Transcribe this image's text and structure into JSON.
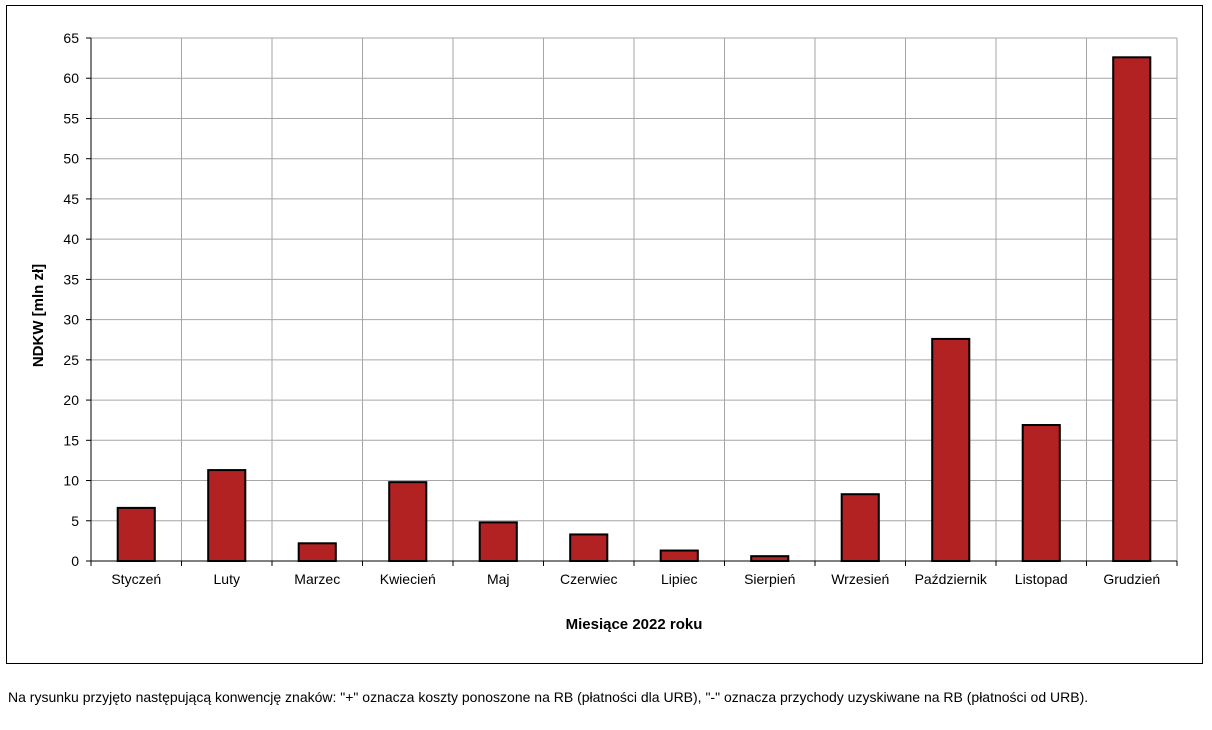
{
  "chart_data": {
    "type": "bar",
    "xlabel": "Miesiące  2022 roku",
    "ylabel": "NDKW [mln zł]",
    "ylim": [
      0,
      65
    ],
    "yticks": [
      0,
      5,
      10,
      15,
      20,
      25,
      30,
      35,
      40,
      45,
      50,
      55,
      60,
      65
    ],
    "grid": true,
    "categories": [
      "Styczeń",
      "Luty",
      "Marzec",
      "Kwiecień",
      "Maj",
      "Czerwiec",
      "Lipiec",
      "Sierpień",
      "Wrzesień",
      "Październik",
      "Listopad",
      "Grudzień"
    ],
    "series": [
      {
        "values": [
          6.6,
          11.3,
          2.2,
          9.8,
          4.8,
          3.3,
          1.3,
          0.6,
          8.3,
          27.6,
          16.9,
          62.6
        ],
        "color": "#b22222"
      }
    ]
  },
  "footnote": "Na rysunku przyjęto następującą konwencję znaków: \"+\" oznacza koszty ponoszone na RB (płatności dla URB), \"-\" oznacza przychody uzyskiwane na RB (płatności od URB)."
}
